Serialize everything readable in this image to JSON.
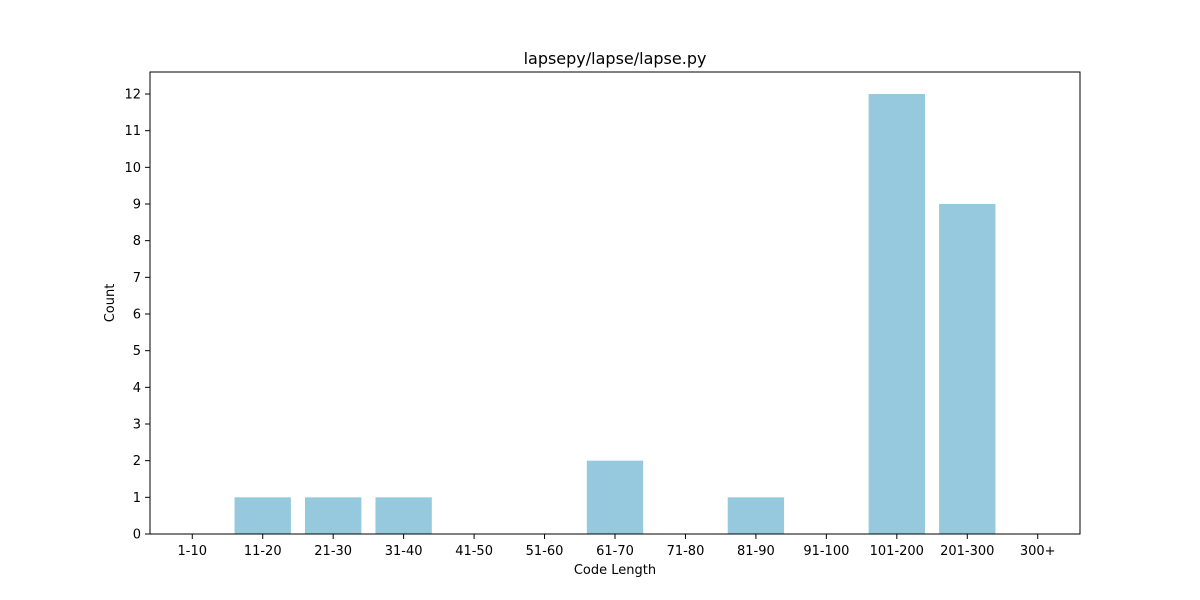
{
  "chart_data": {
    "type": "bar",
    "title": "lapsepy/lapse/lapse.py",
    "xlabel": "Code Length",
    "ylabel": "Count",
    "categories": [
      "1-10",
      "11-20",
      "21-30",
      "31-40",
      "41-50",
      "51-60",
      "61-70",
      "71-80",
      "81-90",
      "91-100",
      "101-200",
      "201-300",
      "300+"
    ],
    "values": [
      0,
      1,
      1,
      1,
      0,
      0,
      2,
      0,
      1,
      0,
      12,
      9,
      0
    ],
    "yticks": [
      0,
      1,
      2,
      3,
      4,
      5,
      6,
      7,
      8,
      9,
      10,
      11,
      12
    ],
    "ylim": [
      0,
      12.6
    ],
    "grid": false,
    "bar_color": "#96c9dd"
  }
}
